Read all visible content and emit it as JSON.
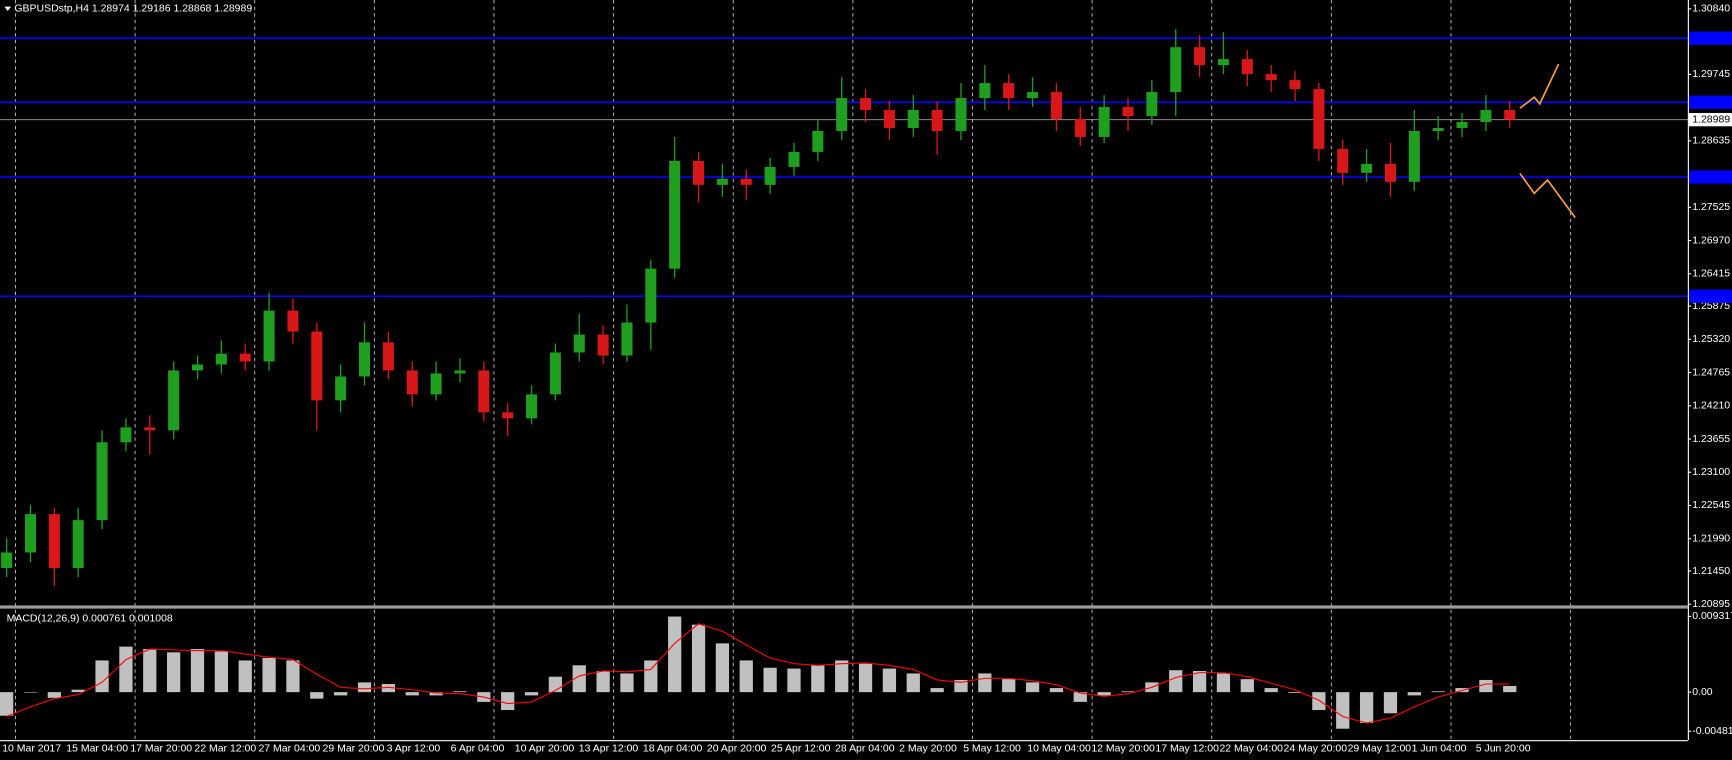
{
  "chart_data": [
    {
      "type": "candlestick",
      "title": "GBPUSDstp,H4  1.28974 1.29186 1.28868 1.28989",
      "open": [
        1.215,
        1.2176,
        1.224,
        1.215,
        1.223,
        1.236,
        1.2385,
        1.238,
        1.248,
        1.249,
        1.2508,
        1.2495,
        1.258,
        1.2545,
        1.243,
        1.247,
        1.2527,
        1.248,
        1.244,
        1.2475,
        1.248,
        1.241,
        1.24,
        1.244,
        1.251,
        1.254,
        1.2505,
        1.256,
        1.265,
        1.283,
        1.279,
        1.28,
        1.279,
        1.282,
        1.2845,
        1.288,
        1.2935,
        1.2915,
        1.2885,
        1.2915,
        1.288,
        1.2935,
        1.296,
        1.2935,
        1.2945,
        1.29,
        1.287,
        1.292,
        1.2905,
        1.2945,
        1.302,
        1.299,
        1.3,
        1.2975,
        1.2965,
        1.295,
        1.285,
        1.281,
        1.2825,
        1.2795,
        1.288,
        1.2885,
        1.2895,
        1.2915
      ],
      "high": [
        1.22,
        1.2255,
        1.225,
        1.225,
        1.238,
        1.24,
        1.2405,
        1.2495,
        1.2505,
        1.253,
        1.2525,
        1.261,
        1.26,
        1.256,
        1.249,
        1.256,
        1.2545,
        1.2495,
        1.2495,
        1.25,
        1.2495,
        1.2425,
        1.2455,
        1.2525,
        1.2575,
        1.2555,
        1.259,
        1.2665,
        1.287,
        1.2845,
        1.2825,
        1.2815,
        1.2835,
        1.286,
        1.29,
        1.297,
        1.295,
        1.293,
        1.294,
        1.293,
        1.296,
        1.299,
        1.2975,
        1.297,
        1.296,
        1.292,
        1.294,
        1.2935,
        1.2965,
        1.305,
        1.304,
        1.3045,
        1.3015,
        1.299,
        1.298,
        1.296,
        1.2865,
        1.285,
        1.286,
        1.2915,
        1.2905,
        1.291,
        1.294,
        1.293
      ],
      "low": [
        1.2135,
        1.216,
        1.212,
        1.2135,
        1.2215,
        1.2345,
        1.234,
        1.2365,
        1.2465,
        1.2475,
        1.248,
        1.248,
        1.2525,
        1.238,
        1.241,
        1.2455,
        1.2465,
        1.242,
        1.243,
        1.246,
        1.2395,
        1.237,
        1.239,
        1.243,
        1.2495,
        1.249,
        1.2495,
        1.2515,
        1.2635,
        1.276,
        1.277,
        1.2765,
        1.2775,
        1.2805,
        1.283,
        1.2865,
        1.2895,
        1.2865,
        1.287,
        1.284,
        1.2865,
        1.2915,
        1.2915,
        1.292,
        1.288,
        1.2855,
        1.286,
        1.288,
        1.289,
        1.2905,
        1.297,
        1.2975,
        1.2955,
        1.2945,
        1.293,
        1.283,
        1.279,
        1.2795,
        1.277,
        1.278,
        1.2865,
        1.287,
        1.288,
        1.2885
      ],
      "close": [
        1.2176,
        1.224,
        1.215,
        1.223,
        1.236,
        1.2385,
        1.238,
        1.248,
        1.249,
        1.2508,
        1.2495,
        1.258,
        1.2545,
        1.243,
        1.247,
        1.2527,
        1.248,
        1.244,
        1.2475,
        1.248,
        1.241,
        1.24,
        1.244,
        1.251,
        1.254,
        1.2505,
        1.256,
        1.265,
        1.283,
        1.279,
        1.28,
        1.279,
        1.282,
        1.2845,
        1.288,
        1.2935,
        1.2915,
        1.2885,
        1.2915,
        1.288,
        1.2935,
        1.296,
        1.2935,
        1.2945,
        1.29,
        1.287,
        1.292,
        1.2905,
        1.2945,
        1.302,
        1.299,
        1.3,
        1.2975,
        1.2965,
        1.295,
        1.285,
        1.281,
        1.2825,
        1.2795,
        1.288,
        1.2885,
        1.2895,
        1.2915,
        1.28989
      ],
      "up_color": "#1f9e1f",
      "down_color": "#d81818",
      "ylim": [
        1.20895,
        1.3084
      ],
      "yticks": [
        {
          "value": 1.3084,
          "label": "1.30840"
        },
        1.29745,
        1.28635,
        1.27525,
        {
          "value": 1.2697,
          "label": "1.26970"
        },
        1.26415,
        1.25875,
        {
          "value": 1.2532,
          "label": "1.25320"
        },
        1.24765,
        {
          "value": 1.2421,
          "label": "1.24210"
        },
        1.23655,
        {
          "value": 1.231,
          "label": "1.23100"
        },
        1.22545,
        {
          "value": 1.2199,
          "label": "1.21990"
        },
        {
          "value": 1.2145,
          "label": "1.21450"
        },
        1.20895
      ],
      "levels": [
        1.3035,
        1.2928,
        1.2803,
        1.2604
      ],
      "level_color": "#0000ff",
      "last_price": 1.28989,
      "x_labels": [
        "10 Mar 2017",
        "15 Mar 04:00",
        "17 Mar 20:00",
        "22 Mar 12:00",
        "27 Mar 04:00",
        "29 Mar 20:00",
        "3 Apr 12:00",
        "6 Apr 04:00",
        "10 Apr 20:00",
        "13 Apr 12:00",
        "18 Apr 04:00",
        "20 Apr 20:00",
        "25 Apr 12:00",
        "28 Apr 04:00",
        "2 May 20:00",
        "5 May 12:00",
        "10 May 04:00",
        "12 May 20:00",
        "17 May 12:00",
        "22 May 04:00",
        "24 May 20:00",
        "29 May 12:00",
        "1 Jun 04:00",
        "5 Jun 20:00"
      ]
    },
    {
      "type": "macd",
      "title": "MACD(12,26,9) 0.000761 0.001008",
      "histogram": [
        -0.0029,
        0,
        -0.0007,
        0.0003,
        0.0039,
        0.0056,
        0.0053,
        0.0049,
        0.0053,
        0.005,
        0.0039,
        0.0042,
        0.0039,
        -0.0008,
        -0.0004,
        0.0012,
        0.001,
        -0.0004,
        -0.0004,
        0.0001,
        -0.0012,
        -0.0022,
        -0.0004,
        0.0019,
        0.0033,
        0.0026,
        0.0023,
        0.0039,
        0.0093,
        0.0083,
        0.006,
        0.0039,
        0.003,
        0.0029,
        0.0033,
        0.0039,
        0.0035,
        0.0029,
        0.0023,
        0.0005,
        0.0015,
        0.0023,
        0.0016,
        0.0012,
        0.0005,
        -0.0012,
        -0.0004,
        0.0001,
        0.0012,
        0.0027,
        0.0026,
        0.0023,
        0.0016,
        0.0005,
        -0.0001,
        -0.0022,
        -0.0045,
        -0.0038,
        -0.0026,
        -0.0004,
        0.0001,
        0.0005,
        0.0015,
        0.000761
      ],
      "signal": [
        -0.003,
        -0.0018,
        -0.0008,
        -0.0003,
        0.0012,
        0.004,
        0.0053,
        0.0052,
        0.0051,
        0.0051,
        0.0047,
        0.0043,
        0.004,
        0.0022,
        0.0006,
        0.0004,
        0.0006,
        0.0003,
        -0.0001,
        -0.0002,
        -0.0006,
        -0.0014,
        -0.0012,
        0.0002,
        0.002,
        0.0026,
        0.0025,
        0.0028,
        0.006,
        0.0084,
        0.0075,
        0.0058,
        0.0042,
        0.0035,
        0.0033,
        0.0035,
        0.0036,
        0.0033,
        0.0028,
        0.0015,
        0.0012,
        0.0017,
        0.0017,
        0.0014,
        0.0009,
        -0.0001,
        -0.0005,
        -0.0002,
        0.0006,
        0.0018,
        0.0024,
        0.0024,
        0.0019,
        0.0011,
        0.0003,
        -0.001,
        -0.003,
        -0.0038,
        -0.0032,
        -0.0018,
        -0.0006,
        0.0002,
        0.001,
        0.001008
      ],
      "histogram_color": "#c0c0c0",
      "signal_color": "#ff0000",
      "ylim": [
        -0.004814,
        0.009317
      ],
      "yticks": [
        0.009317,
        {
          "value": 0,
          "label": "0.00"
        },
        -0.004814
      ]
    }
  ]
}
